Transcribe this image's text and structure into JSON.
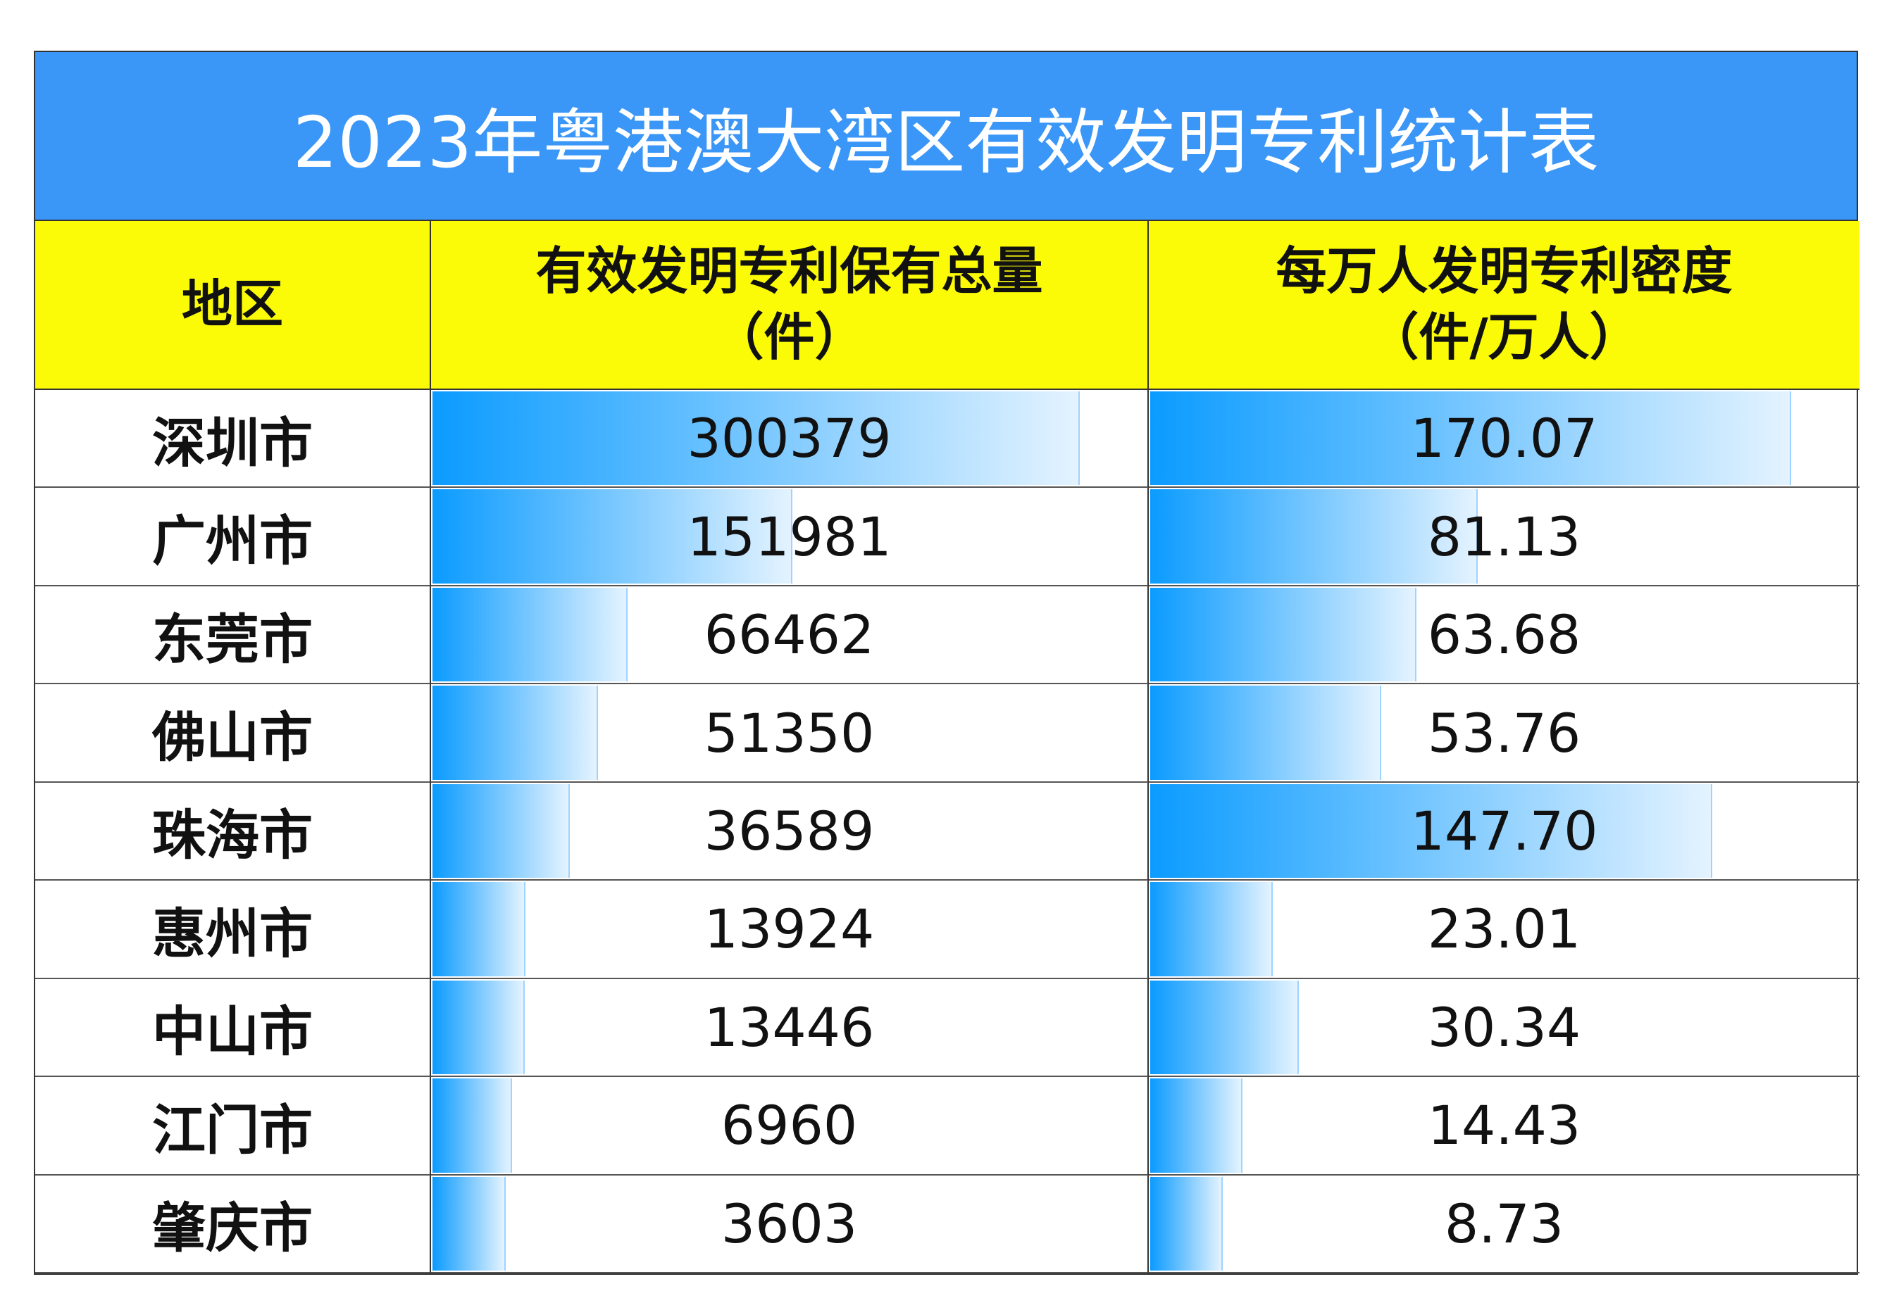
{
  "table": {
    "title": "2023年粤港澳大湾区有效发明专利统计表",
    "headers": [
      "地区",
      "有效发明专利保有总量\n（件）",
      "每万人发明专利密度\n（件/万人）"
    ],
    "rows": [
      {
        "region": "深圳市",
        "total": 300379,
        "density": 170.07
      },
      {
        "region": "广州市",
        "total": 151981,
        "density": 81.13
      },
      {
        "region": "东莞市",
        "total": 66462,
        "density": 63.68
      },
      {
        "region": "佛山市",
        "total": 51350,
        "density": 53.76
      },
      {
        "region": "珠海市",
        "total": 36589,
        "density": {
          "value": 147.7,
          "label": "147.70"
        }
      },
      {
        "region": "惠州市",
        "total": 13924,
        "density": 23.01
      },
      {
        "region": "中山市",
        "total": 13446,
        "density": 30.34
      },
      {
        "region": "江门市",
        "total": 6960,
        "density": 14.43
      },
      {
        "region": "肇庆市",
        "total": 3603,
        "density": 8.73
      }
    ]
  }
}
